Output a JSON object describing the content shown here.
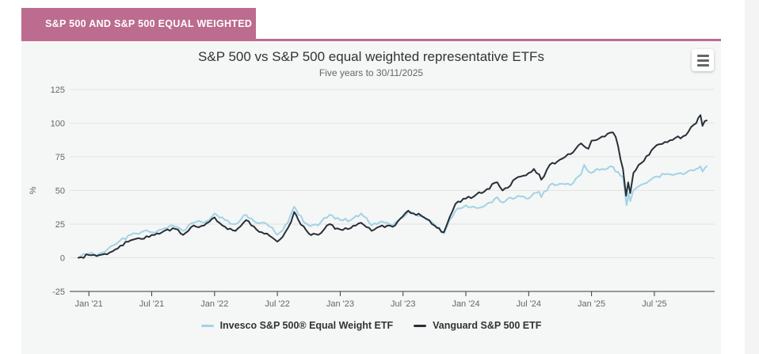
{
  "page": {
    "background": "#ffffff",
    "right_strip_color": "#f4f4f4"
  },
  "panel": {
    "tab_label": "S&P 500 AND S&P 500 EQUAL WEIGHTED",
    "tab_color": "#bc6c8f",
    "body_color": "#f5f6f6"
  },
  "chart": {
    "title": "S&P 500 vs S&P 500 equal weighted representative ETFs",
    "subtitle": "Five years to 30/11/2025",
    "menu_icon": "hamburger-icon"
  },
  "chart_data": {
    "type": "line",
    "title": "S&P 500 vs S&P 500 equal weighted representative ETFs",
    "subtitle": "Five years to 30/11/2025",
    "xlabel": "",
    "ylabel": "%",
    "ylim": [
      -25,
      125
    ],
    "yticks": [
      125,
      100,
      75,
      50,
      25,
      0,
      -25
    ],
    "grid": true,
    "legend_position": "bottom",
    "colors": {
      "grid": "#e3e3e3",
      "axis_line": "#3a3a3a",
      "tick_text": "#666666",
      "title_text": "#333333",
      "subtitle_text": "#666666"
    },
    "x_axis": {
      "unit": "months since 30/11/2020",
      "range": [
        0,
        60
      ],
      "tick_months": [
        1,
        7,
        13,
        19,
        25,
        31,
        37,
        43,
        49,
        55
      ],
      "tick_labels": [
        "Jan '21",
        "Jul '21",
        "Jan '22",
        "Jul '22",
        "Jan '23",
        "Jul '23",
        "Jan '24",
        "Jul '24",
        "Jan '25",
        "Jul '25"
      ]
    },
    "series": [
      {
        "name": "Invesco S&P 500® Equal Weight ETF",
        "color": "#a2d3e5",
        "points": [
          [
            0,
            0
          ],
          [
            1,
            3
          ],
          [
            2,
            3
          ],
          [
            3,
            8
          ],
          [
            4,
            13
          ],
          [
            5,
            17
          ],
          [
            6,
            19
          ],
          [
            7,
            19
          ],
          [
            8,
            21
          ],
          [
            9,
            24
          ],
          [
            10,
            20
          ],
          [
            11,
            26
          ],
          [
            12,
            26
          ],
          [
            13,
            33
          ],
          [
            14,
            28
          ],
          [
            15,
            25
          ],
          [
            16,
            32
          ],
          [
            17,
            26
          ],
          [
            18,
            25
          ],
          [
            19,
            17
          ],
          [
            20,
            26
          ],
          [
            20.6,
            38
          ],
          [
            21,
            32
          ],
          [
            22,
            24
          ],
          [
            22.9,
            24
          ],
          [
            24,
            32
          ],
          [
            25,
            28
          ],
          [
            26,
            28
          ],
          [
            27,
            33
          ],
          [
            28,
            24
          ],
          [
            29,
            27
          ],
          [
            30,
            24
          ],
          [
            31,
            30
          ],
          [
            31.5,
            34
          ],
          [
            32,
            33
          ],
          [
            33,
            30
          ],
          [
            34,
            25
          ],
          [
            34.9,
            18
          ],
          [
            36,
            35
          ],
          [
            37,
            39
          ],
          [
            38,
            37
          ],
          [
            39,
            40
          ],
          [
            40,
            45
          ],
          [
            40.5,
            41
          ],
          [
            41,
            44
          ],
          [
            42,
            46
          ],
          [
            43,
            44
          ],
          [
            43.5,
            48
          ],
          [
            44,
            49
          ],
          [
            44.2,
            45
          ],
          [
            45,
            54
          ],
          [
            46,
            55
          ],
          [
            47,
            54
          ],
          [
            48,
            62
          ],
          [
            48.3,
            69
          ],
          [
            49,
            63
          ],
          [
            50,
            66
          ],
          [
            50.8,
            68
          ],
          [
            51.3,
            64
          ],
          [
            52,
            60
          ],
          [
            52.35,
            39
          ],
          [
            52.55,
            48
          ],
          [
            52.7,
            42
          ],
          [
            53,
            50
          ],
          [
            54,
            55
          ],
          [
            55,
            60
          ],
          [
            56,
            62
          ],
          [
            57,
            62
          ],
          [
            58,
            63
          ],
          [
            59,
            66
          ],
          [
            59.4,
            68
          ],
          [
            59.6,
            64
          ],
          [
            60,
            68
          ]
        ]
      },
      {
        "name": "Vanguard S&P 500 ETF",
        "color": "#272f38",
        "points": [
          [
            0,
            0
          ],
          [
            1,
            2
          ],
          [
            2,
            2
          ],
          [
            3,
            4
          ],
          [
            4,
            9
          ],
          [
            5,
            13
          ],
          [
            6,
            14
          ],
          [
            7,
            17
          ],
          [
            8,
            19
          ],
          [
            9,
            22
          ],
          [
            10,
            17
          ],
          [
            11,
            24
          ],
          [
            12,
            24
          ],
          [
            13,
            30
          ],
          [
            14,
            23
          ],
          [
            15,
            20
          ],
          [
            16,
            28
          ],
          [
            17,
            21
          ],
          [
            18,
            18
          ],
          [
            19,
            12
          ],
          [
            20,
            22
          ],
          [
            20.6,
            34
          ],
          [
            21,
            28
          ],
          [
            22,
            18
          ],
          [
            22.9,
            17
          ],
          [
            24,
            25
          ],
          [
            25,
            21
          ],
          [
            26,
            22
          ],
          [
            27,
            26
          ],
          [
            28,
            20
          ],
          [
            29,
            24
          ],
          [
            30,
            23
          ],
          [
            31,
            31
          ],
          [
            31.5,
            35
          ],
          [
            32,
            33
          ],
          [
            33,
            30
          ],
          [
            34,
            24
          ],
          [
            34.9,
            19
          ],
          [
            36,
            40
          ],
          [
            37,
            44
          ],
          [
            38,
            47
          ],
          [
            39,
            51
          ],
          [
            40,
            56
          ],
          [
            40.5,
            50
          ],
          [
            41,
            52
          ],
          [
            42,
            60
          ],
          [
            43,
            63
          ],
          [
            43.5,
            66
          ],
          [
            44,
            62
          ],
          [
            44.2,
            58
          ],
          [
            45,
            69
          ],
          [
            46,
            73
          ],
          [
            47,
            77
          ],
          [
            48,
            85
          ],
          [
            48.7,
            81
          ],
          [
            49,
            87
          ],
          [
            50,
            90
          ],
          [
            50.8,
            93
          ],
          [
            51.3,
            90
          ],
          [
            52,
            66
          ],
          [
            52.3,
            46
          ],
          [
            52.5,
            56
          ],
          [
            52.7,
            48
          ],
          [
            53,
            63
          ],
          [
            54,
            72
          ],
          [
            55,
            82
          ],
          [
            56,
            86
          ],
          [
            57,
            89
          ],
          [
            58,
            91
          ],
          [
            59,
            100
          ],
          [
            59.4,
            106
          ],
          [
            59.6,
            98
          ],
          [
            60,
            102
          ]
        ]
      }
    ]
  }
}
